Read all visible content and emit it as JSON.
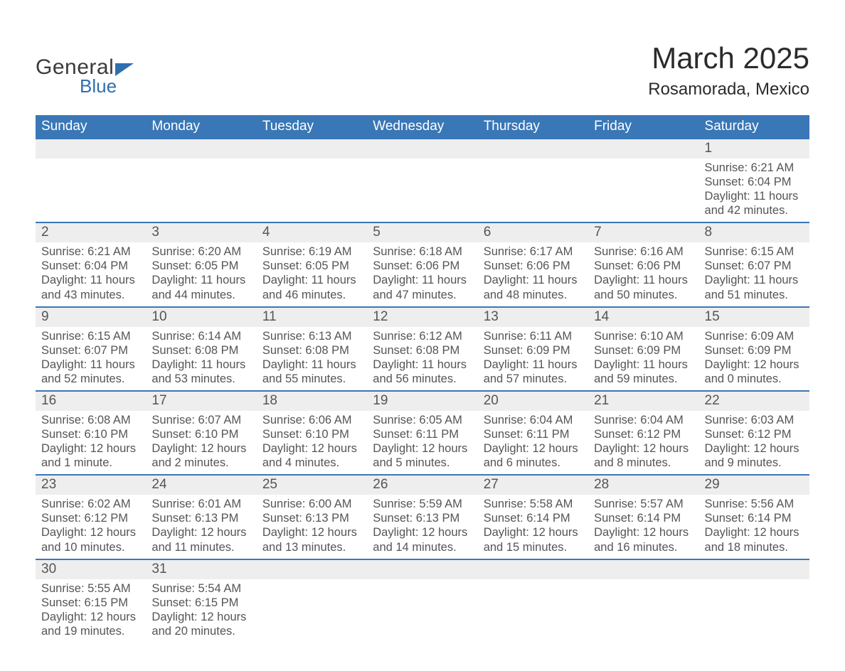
{
  "logo": {
    "line1": "General",
    "line2": "Blue"
  },
  "title": "March 2025",
  "location": "Rosamorada, Mexico",
  "weekdays": [
    "Sunday",
    "Monday",
    "Tuesday",
    "Wednesday",
    "Thursday",
    "Friday",
    "Saturday"
  ],
  "colors": {
    "header_bg": "#3a77b6",
    "header_text": "#ffffff",
    "daynum_bg": "#eeeeee",
    "border_top": "#3a77b6",
    "body_text": "#555555",
    "logo_blue": "#2f6fae"
  },
  "weeks": [
    [
      null,
      null,
      null,
      null,
      null,
      null,
      {
        "day": "1",
        "sunrise": "Sunrise: 6:21 AM",
        "sunset": "Sunset: 6:04 PM",
        "dl1": "Daylight: 11 hours",
        "dl2": "and 42 minutes."
      }
    ],
    [
      {
        "day": "2",
        "sunrise": "Sunrise: 6:21 AM",
        "sunset": "Sunset: 6:04 PM",
        "dl1": "Daylight: 11 hours",
        "dl2": "and 43 minutes."
      },
      {
        "day": "3",
        "sunrise": "Sunrise: 6:20 AM",
        "sunset": "Sunset: 6:05 PM",
        "dl1": "Daylight: 11 hours",
        "dl2": "and 44 minutes."
      },
      {
        "day": "4",
        "sunrise": "Sunrise: 6:19 AM",
        "sunset": "Sunset: 6:05 PM",
        "dl1": "Daylight: 11 hours",
        "dl2": "and 46 minutes."
      },
      {
        "day": "5",
        "sunrise": "Sunrise: 6:18 AM",
        "sunset": "Sunset: 6:06 PM",
        "dl1": "Daylight: 11 hours",
        "dl2": "and 47 minutes."
      },
      {
        "day": "6",
        "sunrise": "Sunrise: 6:17 AM",
        "sunset": "Sunset: 6:06 PM",
        "dl1": "Daylight: 11 hours",
        "dl2": "and 48 minutes."
      },
      {
        "day": "7",
        "sunrise": "Sunrise: 6:16 AM",
        "sunset": "Sunset: 6:06 PM",
        "dl1": "Daylight: 11 hours",
        "dl2": "and 50 minutes."
      },
      {
        "day": "8",
        "sunrise": "Sunrise: 6:15 AM",
        "sunset": "Sunset: 6:07 PM",
        "dl1": "Daylight: 11 hours",
        "dl2": "and 51 minutes."
      }
    ],
    [
      {
        "day": "9",
        "sunrise": "Sunrise: 6:15 AM",
        "sunset": "Sunset: 6:07 PM",
        "dl1": "Daylight: 11 hours",
        "dl2": "and 52 minutes."
      },
      {
        "day": "10",
        "sunrise": "Sunrise: 6:14 AM",
        "sunset": "Sunset: 6:08 PM",
        "dl1": "Daylight: 11 hours",
        "dl2": "and 53 minutes."
      },
      {
        "day": "11",
        "sunrise": "Sunrise: 6:13 AM",
        "sunset": "Sunset: 6:08 PM",
        "dl1": "Daylight: 11 hours",
        "dl2": "and 55 minutes."
      },
      {
        "day": "12",
        "sunrise": "Sunrise: 6:12 AM",
        "sunset": "Sunset: 6:08 PM",
        "dl1": "Daylight: 11 hours",
        "dl2": "and 56 minutes."
      },
      {
        "day": "13",
        "sunrise": "Sunrise: 6:11 AM",
        "sunset": "Sunset: 6:09 PM",
        "dl1": "Daylight: 11 hours",
        "dl2": "and 57 minutes."
      },
      {
        "day": "14",
        "sunrise": "Sunrise: 6:10 AM",
        "sunset": "Sunset: 6:09 PM",
        "dl1": "Daylight: 11 hours",
        "dl2": "and 59 minutes."
      },
      {
        "day": "15",
        "sunrise": "Sunrise: 6:09 AM",
        "sunset": "Sunset: 6:09 PM",
        "dl1": "Daylight: 12 hours",
        "dl2": "and 0 minutes."
      }
    ],
    [
      {
        "day": "16",
        "sunrise": "Sunrise: 6:08 AM",
        "sunset": "Sunset: 6:10 PM",
        "dl1": "Daylight: 12 hours",
        "dl2": "and 1 minute."
      },
      {
        "day": "17",
        "sunrise": "Sunrise: 6:07 AM",
        "sunset": "Sunset: 6:10 PM",
        "dl1": "Daylight: 12 hours",
        "dl2": "and 2 minutes."
      },
      {
        "day": "18",
        "sunrise": "Sunrise: 6:06 AM",
        "sunset": "Sunset: 6:10 PM",
        "dl1": "Daylight: 12 hours",
        "dl2": "and 4 minutes."
      },
      {
        "day": "19",
        "sunrise": "Sunrise: 6:05 AM",
        "sunset": "Sunset: 6:11 PM",
        "dl1": "Daylight: 12 hours",
        "dl2": "and 5 minutes."
      },
      {
        "day": "20",
        "sunrise": "Sunrise: 6:04 AM",
        "sunset": "Sunset: 6:11 PM",
        "dl1": "Daylight: 12 hours",
        "dl2": "and 6 minutes."
      },
      {
        "day": "21",
        "sunrise": "Sunrise: 6:04 AM",
        "sunset": "Sunset: 6:12 PM",
        "dl1": "Daylight: 12 hours",
        "dl2": "and 8 minutes."
      },
      {
        "day": "22",
        "sunrise": "Sunrise: 6:03 AM",
        "sunset": "Sunset: 6:12 PM",
        "dl1": "Daylight: 12 hours",
        "dl2": "and 9 minutes."
      }
    ],
    [
      {
        "day": "23",
        "sunrise": "Sunrise: 6:02 AM",
        "sunset": "Sunset: 6:12 PM",
        "dl1": "Daylight: 12 hours",
        "dl2": "and 10 minutes."
      },
      {
        "day": "24",
        "sunrise": "Sunrise: 6:01 AM",
        "sunset": "Sunset: 6:13 PM",
        "dl1": "Daylight: 12 hours",
        "dl2": "and 11 minutes."
      },
      {
        "day": "25",
        "sunrise": "Sunrise: 6:00 AM",
        "sunset": "Sunset: 6:13 PM",
        "dl1": "Daylight: 12 hours",
        "dl2": "and 13 minutes."
      },
      {
        "day": "26",
        "sunrise": "Sunrise: 5:59 AM",
        "sunset": "Sunset: 6:13 PM",
        "dl1": "Daylight: 12 hours",
        "dl2": "and 14 minutes."
      },
      {
        "day": "27",
        "sunrise": "Sunrise: 5:58 AM",
        "sunset": "Sunset: 6:14 PM",
        "dl1": "Daylight: 12 hours",
        "dl2": "and 15 minutes."
      },
      {
        "day": "28",
        "sunrise": "Sunrise: 5:57 AM",
        "sunset": "Sunset: 6:14 PM",
        "dl1": "Daylight: 12 hours",
        "dl2": "and 16 minutes."
      },
      {
        "day": "29",
        "sunrise": "Sunrise: 5:56 AM",
        "sunset": "Sunset: 6:14 PM",
        "dl1": "Daylight: 12 hours",
        "dl2": "and 18 minutes."
      }
    ],
    [
      {
        "day": "30",
        "sunrise": "Sunrise: 5:55 AM",
        "sunset": "Sunset: 6:15 PM",
        "dl1": "Daylight: 12 hours",
        "dl2": "and 19 minutes."
      },
      {
        "day": "31",
        "sunrise": "Sunrise: 5:54 AM",
        "sunset": "Sunset: 6:15 PM",
        "dl1": "Daylight: 12 hours",
        "dl2": "and 20 minutes."
      },
      null,
      null,
      null,
      null,
      null
    ]
  ]
}
